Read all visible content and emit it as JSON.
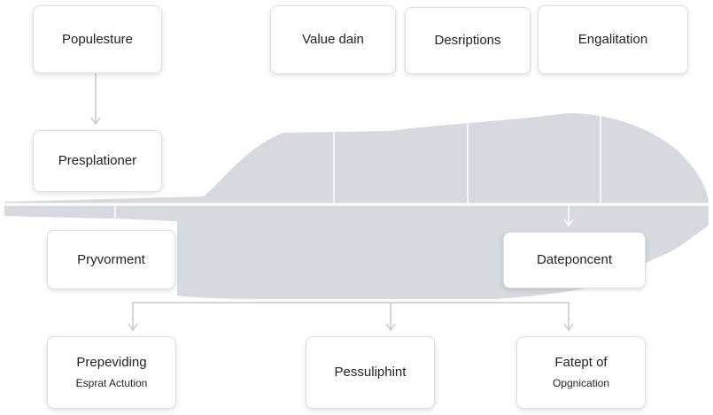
{
  "nodes": {
    "populesture": "Populesture",
    "value_dain": "Value dain",
    "desriptions": "Desriptions",
    "engalitation": "Engalitation",
    "presplationer": "Presplationer",
    "pryvorment": "Pryvorment",
    "dateponcent": "Dateponcent",
    "prepeviding": {
      "title": "Prepeviding",
      "subtitle": "Esprat Actution"
    },
    "pessuliphint": "Pessuliphint",
    "fatept_of": {
      "title": "Fatept of",
      "subtitle": "Opgnication"
    }
  },
  "colors": {
    "background": "#ffffff",
    "band": "#c9ccd6",
    "connector": "#c8c8c8",
    "timeline": "#ffffff"
  }
}
